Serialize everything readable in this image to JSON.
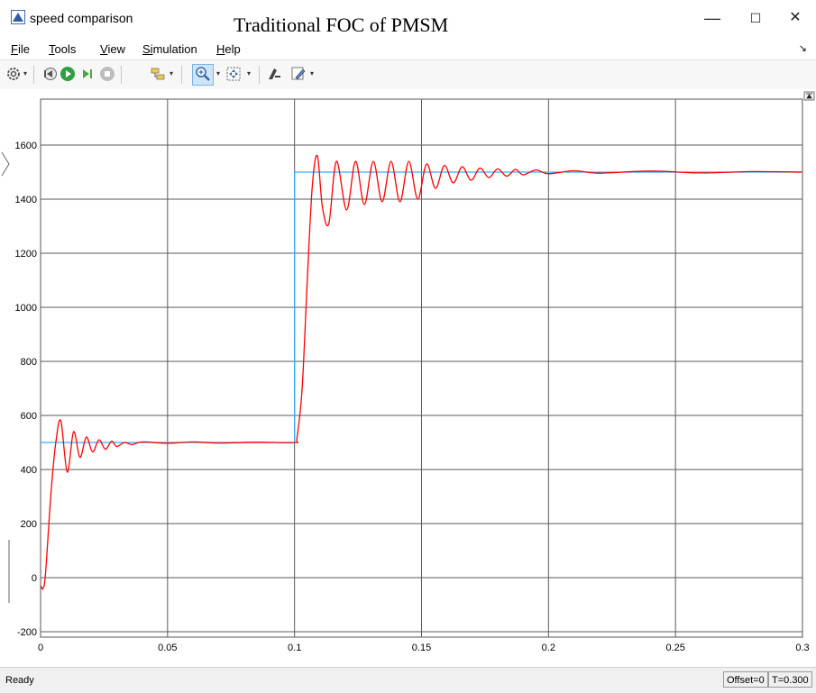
{
  "window": {
    "title": "speed comparison",
    "minimize": "—",
    "maximize": "☐",
    "close": "✕"
  },
  "overlay_title": "Traditional FOC of PMSM",
  "menu": [
    {
      "accel": "F",
      "rest": "ile"
    },
    {
      "accel": "T",
      "rest": "ools"
    },
    {
      "accel": "V",
      "rest": "iew"
    },
    {
      "accel": "Si",
      "rest": "mulation"
    },
    {
      "accel": "H",
      "rest": "elp"
    }
  ],
  "toolbar_icons": [
    "gear-icon",
    "step-back-icon",
    "run-icon",
    "step-forward-icon",
    "stop-icon",
    "highlight-icon",
    "zoom-icon",
    "fit-icon",
    "style-icon",
    "pen-icon"
  ],
  "status": {
    "text": "Ready",
    "offset": "Offset=0",
    "time": "T=0.300"
  },
  "colors": {
    "reference": "#33aaff",
    "actual": "#ff0000"
  },
  "chart_data": {
    "type": "line",
    "title": "",
    "xlabel": "",
    "ylabel": "",
    "xlim": [
      0,
      0.3
    ],
    "ylim": [
      -220,
      1770
    ],
    "x_ticks": [
      0,
      0.05,
      0.1,
      0.15,
      0.2,
      0.25,
      0.3
    ],
    "x_tick_labels": [
      "0",
      "0.05",
      "0.1",
      "0.15",
      "0.2",
      "0.25",
      "0.3"
    ],
    "y_ticks": [
      -200,
      0,
      200,
      400,
      600,
      800,
      1000,
      1200,
      1400,
      1600
    ],
    "y_tick_labels": [
      "-200",
      "0",
      "200",
      "400",
      "600",
      "800",
      "1000",
      "1200",
      "1400",
      "1600"
    ],
    "grid": true,
    "series": [
      {
        "role": "reference",
        "color": "#33aaff",
        "x": [
          0,
          0.1,
          0.1,
          0.3
        ],
        "y": [
          500,
          500,
          1500,
          1500
        ]
      },
      {
        "role": "actual",
        "color": "#ff0000",
        "x": [
          0,
          0.001,
          0.002,
          0.004,
          0.006,
          0.008,
          0.0105,
          0.013,
          0.0155,
          0.018,
          0.0205,
          0.023,
          0.0255,
          0.028,
          0.03,
          0.033,
          0.036,
          0.04,
          0.05,
          0.06,
          0.07,
          0.085,
          0.1,
          0.101,
          0.103,
          0.105,
          0.107,
          0.109,
          0.111,
          0.1135,
          0.1165,
          0.1205,
          0.124,
          0.1275,
          0.131,
          0.1345,
          0.138,
          0.1415,
          0.145,
          0.1485,
          0.152,
          0.1555,
          0.159,
          0.1625,
          0.166,
          0.1695,
          0.173,
          0.1765,
          0.18,
          0.1835,
          0.187,
          0.19,
          0.195,
          0.2,
          0.21,
          0.22,
          0.24,
          0.26,
          0.28,
          0.3
        ],
        "y": [
          -30,
          -40,
          20,
          300,
          500,
          580,
          390,
          540,
          445,
          520,
          465,
          510,
          475,
          505,
          485,
          500,
          492,
          502,
          497,
          502,
          498,
          501,
          500,
          520,
          700,
          1100,
          1450,
          1560,
          1370,
          1310,
          1540,
          1360,
          1540,
          1380,
          1540,
          1390,
          1540,
          1390,
          1540,
          1400,
          1530,
          1440,
          1525,
          1460,
          1520,
          1470,
          1515,
          1480,
          1512,
          1485,
          1510,
          1490,
          1508,
          1494,
          1505,
          1496,
          1504,
          1497,
          1502,
          1500
        ]
      }
    ]
  }
}
